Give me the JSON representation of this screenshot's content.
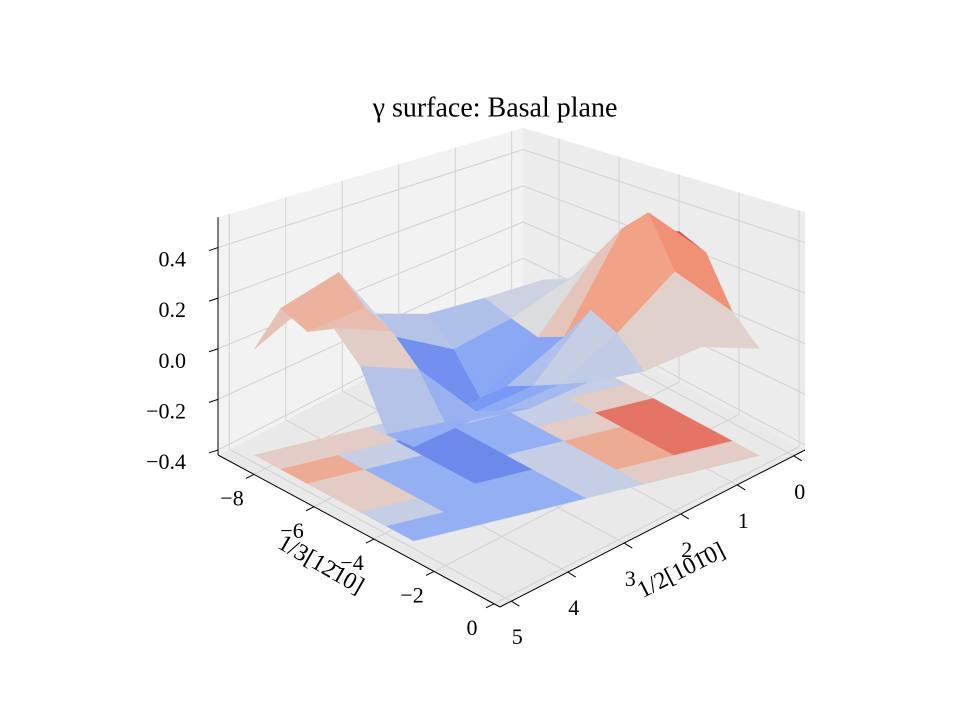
{
  "chart_data": {
    "type": "surface3d",
    "title": "γ surface: Basal plane",
    "xlabel": "1/3[12̄10]",
    "ylabel": "1/2[101̄0]",
    "xlim": [
      -9.2,
      0.2
    ],
    "ylim": [
      -0.2,
      5.2
    ],
    "zlim": [
      -0.42,
      0.52
    ],
    "xticks": [
      {
        "value": -8,
        "label": "−8"
      },
      {
        "value": -6,
        "label": "−6"
      },
      {
        "value": -4,
        "label": "−4"
      },
      {
        "value": -2,
        "label": "−2"
      },
      0
    ],
    "yticks": [
      0,
      1,
      2,
      3,
      4,
      5
    ],
    "zticks": [
      {
        "value": -0.4,
        "label": "−0.4"
      },
      {
        "value": -0.2,
        "label": "−0.2"
      },
      {
        "value": 0,
        "label": "0.0"
      },
      0.2,
      0.4
    ],
    "grid": true,
    "colormap": "coolwarm",
    "floor_contour": true,
    "X": [
      [
        -8.6,
        -8.11,
        -7.62,
        -7.14,
        -6.65,
        -6.16,
        -5.67
      ],
      [
        -7.72,
        -7.23,
        -6.74,
        -6.26,
        -5.77,
        -5.28,
        -4.79
      ],
      [
        -6.83,
        -6.34,
        -5.85,
        -5.37,
        -4.88,
        -4.39,
        -3.9
      ],
      [
        -5.95,
        -5.46,
        -4.97,
        -4.49,
        -4.0,
        -3.51,
        -3.02
      ],
      [
        -5.07,
        -4.58,
        -4.09,
        -3.61,
        -3.12,
        -2.63,
        -2.14
      ],
      [
        -4.19,
        -3.7,
        -3.21,
        -2.73,
        -2.24,
        -1.75,
        -1.26
      ],
      [
        -3.3,
        -2.81,
        -2.32,
        -1.84,
        -1.35,
        -0.86,
        -0.37
      ]
    ],
    "Y": [
      [
        4.87,
        4.11,
        3.35,
        2.59,
        1.83,
        1.07,
        0.31
      ],
      [
        4.87,
        4.11,
        3.35,
        2.59,
        1.83,
        1.07,
        0.31
      ],
      [
        4.87,
        4.11,
        3.35,
        2.59,
        1.83,
        1.07,
        0.31
      ],
      [
        4.87,
        4.11,
        3.35,
        2.59,
        1.83,
        1.07,
        0.31
      ],
      [
        4.87,
        4.11,
        3.35,
        2.59,
        1.83,
        1.07,
        0.31
      ],
      [
        4.87,
        4.11,
        3.35,
        2.59,
        1.83,
        1.07,
        0.31
      ],
      [
        4.87,
        4.11,
        3.35,
        2.59,
        1.83,
        1.07,
        0.31
      ]
    ],
    "Z": [
      [
        0.0,
        0.15,
        0.05,
        0.0,
        0.02,
        0.05,
        0.02
      ],
      [
        0.2,
        0.3,
        0.0,
        -0.1,
        -0.02,
        0.1,
        0.1
      ],
      [
        0.15,
        0.2,
        -0.35,
        -0.25,
        -0.05,
        0.25,
        0.2
      ],
      [
        0.2,
        0.15,
        -0.2,
        -0.15,
        0.0,
        0.4,
        0.35
      ],
      [
        0.1,
        0.05,
        -0.15,
        -0.1,
        0.15,
        0.5,
        0.3
      ],
      [
        -0.1,
        -0.1,
        -0.1,
        -0.05,
        0.1,
        0.3,
        0.1
      ],
      [
        -0.1,
        -0.05,
        -0.05,
        0.0,
        0.0,
        0.05,
        0.0
      ]
    ]
  }
}
